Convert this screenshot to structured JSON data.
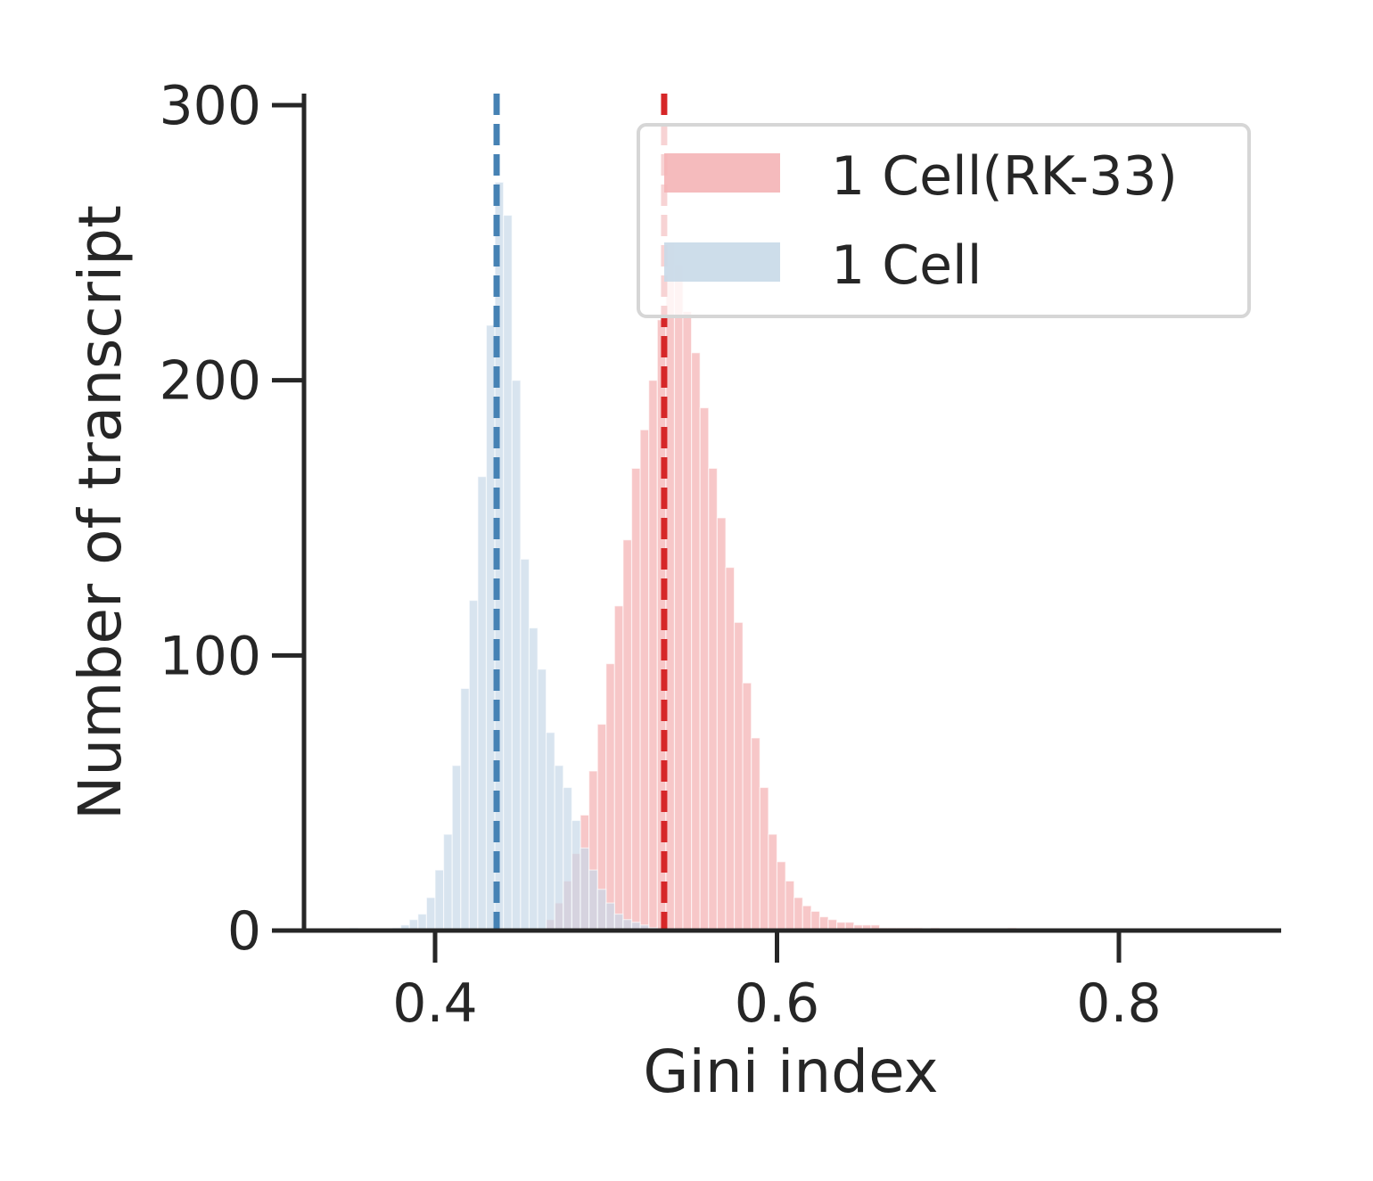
{
  "chart_data": {
    "type": "histogram",
    "title": "",
    "xlabel": "Gini index",
    "ylabel": "Number of transcript",
    "xlim": [
      0.32,
      0.9
    ],
    "ylim": [
      0,
      302
    ],
    "xticks": [
      0.4,
      0.6,
      0.8
    ],
    "xtick_labels": [
      "0.4",
      "0.6",
      "0.8"
    ],
    "yticks": [
      0,
      100,
      200,
      300
    ],
    "ytick_labels": [
      "0",
      "100",
      "200",
      "300"
    ],
    "bin_width": 0.005,
    "legend": {
      "position": "top-right"
    },
    "series": [
      {
        "name": "1 Cell(RK-33)",
        "color": "#d62728",
        "fill": "#f4b4b6",
        "mean_line": 0.534,
        "bins": [
          [
            0.465,
            4
          ],
          [
            0.47,
            10
          ],
          [
            0.475,
            18
          ],
          [
            0.48,
            28
          ],
          [
            0.485,
            42
          ],
          [
            0.49,
            58
          ],
          [
            0.495,
            75
          ],
          [
            0.5,
            97
          ],
          [
            0.505,
            118
          ],
          [
            0.51,
            142
          ],
          [
            0.515,
            168
          ],
          [
            0.52,
            182
          ],
          [
            0.525,
            200
          ],
          [
            0.53,
            222
          ],
          [
            0.535,
            250
          ],
          [
            0.54,
            242
          ],
          [
            0.545,
            225
          ],
          [
            0.55,
            210
          ],
          [
            0.555,
            190
          ],
          [
            0.56,
            168
          ],
          [
            0.565,
            150
          ],
          [
            0.57,
            132
          ],
          [
            0.575,
            112
          ],
          [
            0.58,
            90
          ],
          [
            0.585,
            70
          ],
          [
            0.59,
            52
          ],
          [
            0.595,
            35
          ],
          [
            0.6,
            25
          ],
          [
            0.605,
            18
          ],
          [
            0.61,
            12
          ],
          [
            0.615,
            9
          ],
          [
            0.62,
            7
          ],
          [
            0.625,
            5
          ],
          [
            0.63,
            4
          ],
          [
            0.635,
            3
          ],
          [
            0.64,
            3
          ],
          [
            0.645,
            2
          ],
          [
            0.65,
            2
          ],
          [
            0.655,
            2
          ],
          [
            0.66,
            1
          ],
          [
            0.665,
            1
          ],
          [
            0.67,
            1
          ],
          [
            0.675,
            1
          ],
          [
            0.68,
            1
          ],
          [
            0.69,
            1
          ],
          [
            0.735,
            1
          ]
        ]
      },
      {
        "name": "1 Cell",
        "color": "#4682b4",
        "fill": "#c8d9e8",
        "mean_line": 0.436,
        "bins": [
          [
            0.35,
            1
          ],
          [
            0.375,
            1
          ],
          [
            0.38,
            2
          ],
          [
            0.385,
            4
          ],
          [
            0.39,
            6
          ],
          [
            0.395,
            12
          ],
          [
            0.4,
            22
          ],
          [
            0.405,
            35
          ],
          [
            0.41,
            60
          ],
          [
            0.415,
            88
          ],
          [
            0.42,
            120
          ],
          [
            0.425,
            165
          ],
          [
            0.43,
            220
          ],
          [
            0.435,
            272
          ],
          [
            0.44,
            260
          ],
          [
            0.445,
            200
          ],
          [
            0.45,
            135
          ],
          [
            0.455,
            110
          ],
          [
            0.46,
            95
          ],
          [
            0.465,
            72
          ],
          [
            0.47,
            60
          ],
          [
            0.475,
            52
          ],
          [
            0.48,
            40
          ],
          [
            0.485,
            30
          ],
          [
            0.49,
            22
          ],
          [
            0.495,
            15
          ],
          [
            0.5,
            10
          ],
          [
            0.505,
            6
          ],
          [
            0.51,
            4
          ],
          [
            0.515,
            3
          ],
          [
            0.52,
            2
          ],
          [
            0.525,
            1
          ]
        ]
      }
    ]
  }
}
